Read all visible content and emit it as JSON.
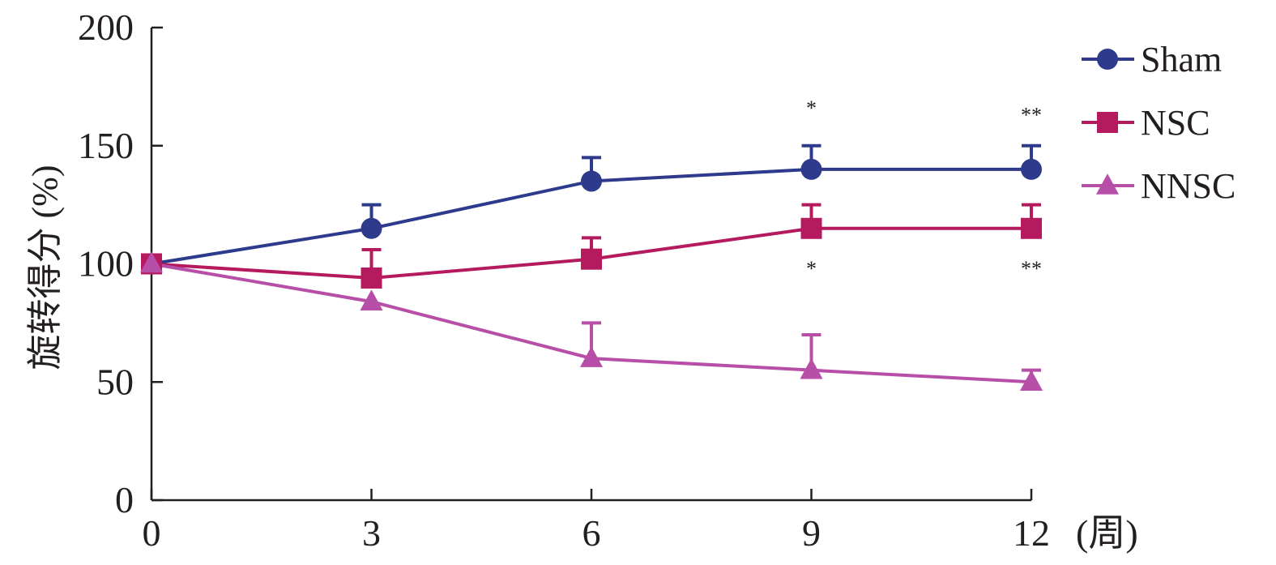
{
  "chart_data": {
    "type": "line",
    "x": [
      0,
      3,
      6,
      9,
      12
    ],
    "xlim": [
      0,
      12
    ],
    "ylim": [
      0,
      200
    ],
    "xlabel": "",
    "x_unit": "(周)",
    "ylabel": "旋转得分 (%)",
    "x_ticks": [
      "0",
      "3",
      "6",
      "9",
      "12"
    ],
    "y_ticks": [
      "0",
      "50",
      "100",
      "150",
      "200"
    ],
    "grid": false,
    "legend_position": "top-right",
    "series": [
      {
        "name": "Sham",
        "marker": "circle",
        "color": "#2e3a8c",
        "values": [
          100,
          115,
          135,
          140,
          140
        ],
        "errors": [
          0,
          10,
          10,
          10,
          10
        ]
      },
      {
        "name": "NSC",
        "marker": "square",
        "color": "#b5195e",
        "values": [
          100,
          94,
          102,
          115,
          115
        ],
        "errors": [
          0,
          12,
          9,
          10,
          10
        ]
      },
      {
        "name": "NNSC",
        "marker": "triangle",
        "color": "#b74ea8",
        "values": [
          100,
          84,
          60,
          55,
          50
        ],
        "errors": [
          0,
          0,
          15,
          15,
          5
        ]
      }
    ],
    "annotations": [
      {
        "text": "*",
        "x": 9,
        "y": 163
      },
      {
        "text": "**",
        "x": 12,
        "y": 160
      },
      {
        "text": "*",
        "x": 9,
        "y": 95
      },
      {
        "text": "**",
        "x": 12,
        "y": 95
      }
    ]
  }
}
